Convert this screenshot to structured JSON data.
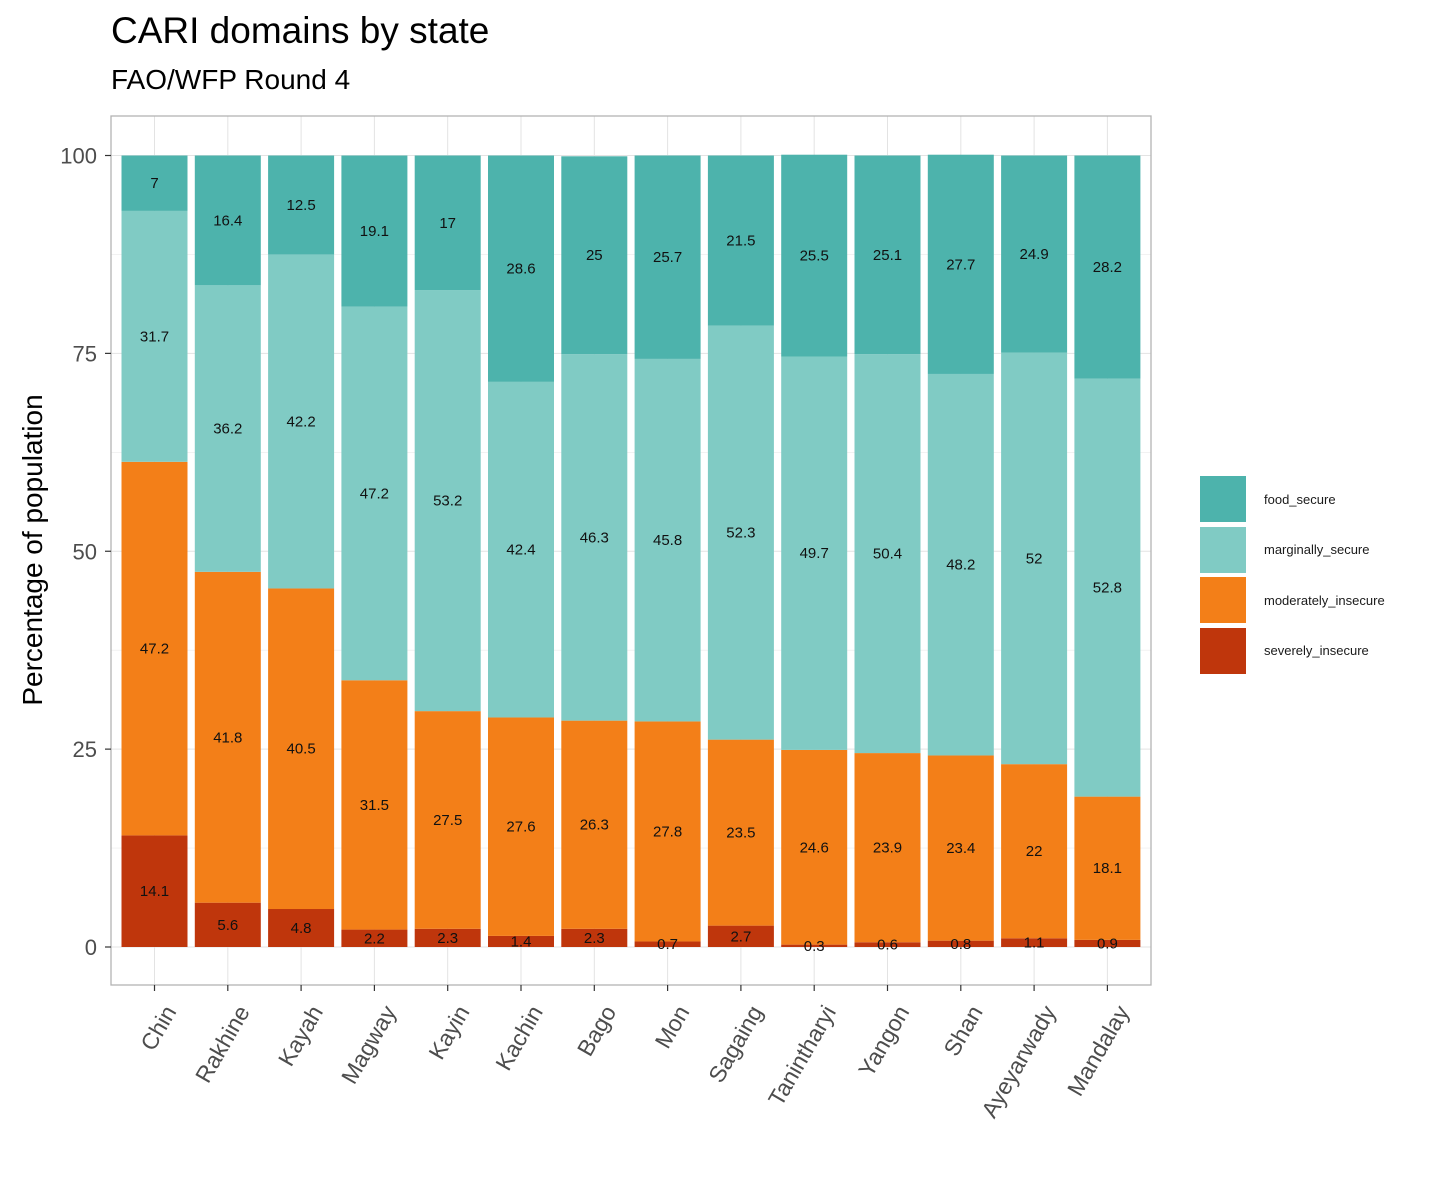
{
  "chart_data": {
    "type": "bar",
    "stacked": true,
    "title": "CARI domains by state",
    "subtitle": "FAO/WFP Round 4",
    "xlabel": "",
    "ylabel": "Percentage of population",
    "ylim": [
      0,
      100
    ],
    "yticks": [
      0,
      25,
      50,
      75,
      100
    ],
    "grid": true,
    "legend_position": "right",
    "categories": [
      "Chin",
      "Rakhine",
      "Kayah",
      "Magway",
      "Kayin",
      "Kachin",
      "Bago",
      "Mon",
      "Sagaing",
      "Tanintharyi",
      "Yangon",
      "Shan",
      "Ayeyarwady",
      "Mandalay"
    ],
    "series": [
      {
        "name": "severely_insecure",
        "color": "#BF360C",
        "values": [
          14.1,
          5.6,
          4.8,
          2.2,
          2.3,
          1.4,
          2.3,
          0.7,
          2.7,
          0.3,
          0.6,
          0.8,
          1.1,
          0.9
        ]
      },
      {
        "name": "moderately_insecure",
        "color": "#F37F18",
        "values": [
          47.2,
          41.8,
          40.5,
          31.5,
          27.5,
          27.6,
          26.3,
          27.8,
          23.5,
          24.6,
          23.9,
          23.4,
          22,
          18.1
        ]
      },
      {
        "name": "marginally_secure",
        "color": "#80CBC4",
        "values": [
          31.7,
          36.2,
          42.2,
          47.2,
          53.2,
          42.4,
          46.3,
          45.8,
          52.3,
          49.7,
          50.4,
          48.2,
          52,
          52.8
        ]
      },
      {
        "name": "food_secure",
        "color": "#4DB3AC",
        "values": [
          7,
          16.4,
          12.5,
          19.1,
          17,
          28.6,
          25,
          25.7,
          21.5,
          25.5,
          25.1,
          27.7,
          24.9,
          28.2
        ]
      }
    ],
    "legend_order": [
      "food_secure",
      "marginally_secure",
      "moderately_insecure",
      "severely_insecure"
    ]
  }
}
